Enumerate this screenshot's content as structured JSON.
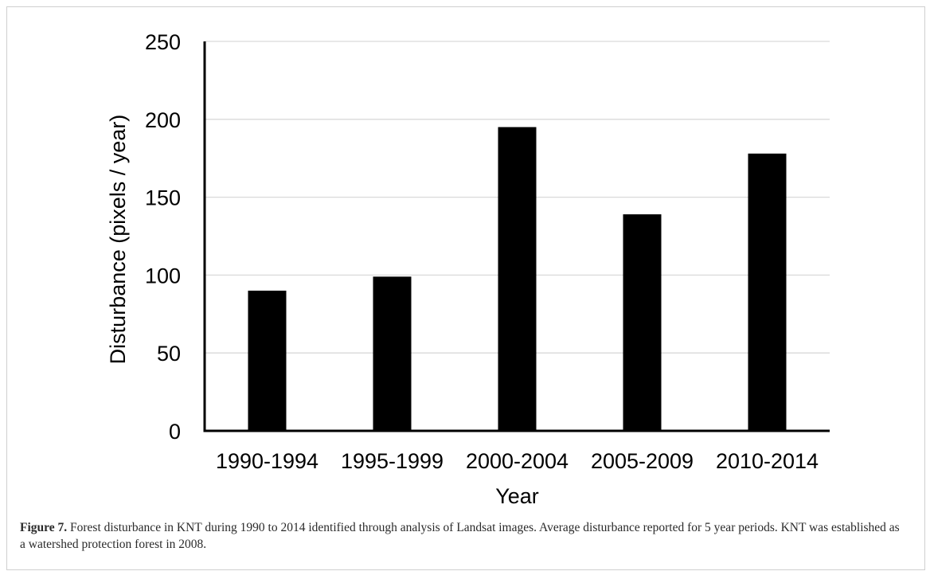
{
  "caption": {
    "label": "Figure 7.",
    "text": " Forest disturbance in KNT during 1990 to 2014 identified through analysis of Landsat images. Average disturbance reported for 5 year periods. KNT was established as a watershed protection forest in 2008."
  },
  "chart_data": {
    "type": "bar",
    "title": "",
    "xlabel": "Year",
    "ylabel": "Disturbance (pixels / year)",
    "categories": [
      "1990-1994",
      "1995-1999",
      "2000-2004",
      "2005-2009",
      "2010-2014"
    ],
    "values": [
      90,
      99,
      195,
      139,
      178
    ],
    "ylim": [
      0,
      250
    ],
    "yticks": [
      0,
      50,
      100,
      150,
      200,
      250
    ],
    "grid": true,
    "legend": "none",
    "colors": {
      "bar": "#000000",
      "grid": "#d9d9d9",
      "axis": "#000000"
    }
  }
}
